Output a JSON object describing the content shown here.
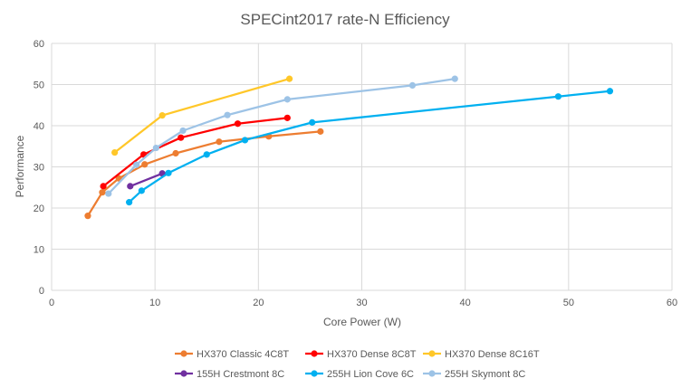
{
  "chart_data": {
    "type": "line",
    "title": "SPECint2017 rate-N Efficiency",
    "xlabel": "Core Power (W)",
    "ylabel": "Performance",
    "xlim": [
      0,
      60
    ],
    "ylim": [
      0,
      60
    ],
    "xticks": [
      0,
      10,
      20,
      30,
      40,
      50,
      60
    ],
    "yticks": [
      0,
      10,
      20,
      30,
      40,
      50,
      60
    ],
    "grid": true,
    "legend_position": "bottom",
    "series": [
      {
        "name": "HX370 Classic 4C8T",
        "color": "#ED7D31",
        "points": [
          [
            3.5,
            18.1
          ],
          [
            4.9,
            23.8
          ],
          [
            6.5,
            27.2
          ],
          [
            9.0,
            30.6
          ],
          [
            12.0,
            33.3
          ],
          [
            16.2,
            36.1
          ],
          [
            21.0,
            37.4
          ],
          [
            26.0,
            38.6
          ]
        ]
      },
      {
        "name": "HX370 Dense 8C8T",
        "color": "#FF0000",
        "points": [
          [
            5.0,
            25.3
          ],
          [
            8.9,
            33.0
          ],
          [
            12.5,
            37.1
          ],
          [
            18.0,
            40.5
          ],
          [
            22.8,
            41.9
          ]
        ]
      },
      {
        "name": "HX370 Dense 8C16T",
        "color": "#FFC729",
        "points": [
          [
            6.1,
            33.5
          ],
          [
            10.7,
            42.5
          ],
          [
            23.0,
            51.4
          ]
        ]
      },
      {
        "name": "155H Crestmont 8C",
        "color": "#7030A0",
        "points": [
          [
            7.6,
            25.3
          ],
          [
            10.7,
            28.4
          ]
        ]
      },
      {
        "name": "255H Lion Cove 6C",
        "color": "#00B0F0",
        "points": [
          [
            7.5,
            21.4
          ],
          [
            8.7,
            24.2
          ],
          [
            11.3,
            28.5
          ],
          [
            15.0,
            33.0
          ],
          [
            18.7,
            36.5
          ],
          [
            25.2,
            40.8
          ],
          [
            49.0,
            47.1
          ],
          [
            54.0,
            48.4
          ]
        ]
      },
      {
        "name": "255H Skymont 8C",
        "color": "#9DC3E6",
        "points": [
          [
            5.5,
            23.5
          ],
          [
            8.2,
            30.5
          ],
          [
            10.1,
            34.6
          ],
          [
            12.7,
            38.8
          ],
          [
            17.0,
            42.6
          ],
          [
            22.8,
            46.4
          ],
          [
            34.9,
            49.8
          ],
          [
            39.0,
            51.4
          ]
        ]
      }
    ]
  }
}
